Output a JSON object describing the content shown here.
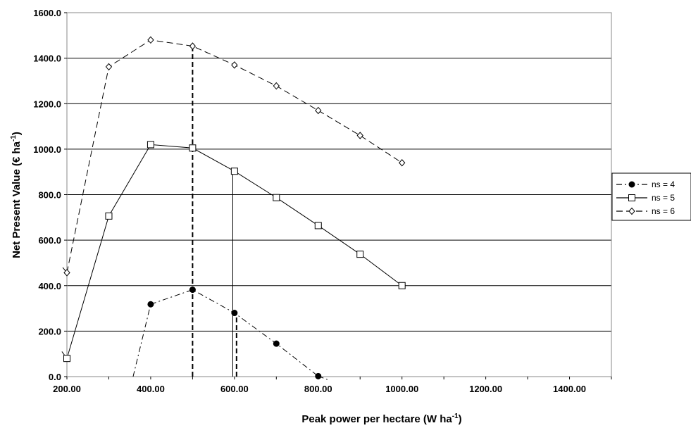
{
  "chart_data": {
    "type": "line",
    "xlabel": "Peak power per hectare (W ha",
    "xlabel_sup": "-1",
    "xlabel_suffix": ")",
    "ylabel": "Net Present Value (€ ha",
    "ylabel_sup": "-1",
    "ylabel_suffix": ")",
    "xlim": [
      200,
      1500
    ],
    "ylim": [
      0,
      1600
    ],
    "x_ticks": [
      200,
      400,
      600,
      800,
      1000,
      1200,
      1400
    ],
    "x_tick_labels": [
      "200.00",
      "400.00",
      "600.00",
      "800.00",
      "1000.00",
      "1200.00",
      "1400.00"
    ],
    "y_ticks": [
      0,
      200,
      400,
      600,
      800,
      1000,
      1200,
      1400,
      1600
    ],
    "y_tick_labels": [
      "0.0",
      "200.0",
      "400.0",
      "600.0",
      "800.0",
      "1000.0",
      "1200.0",
      "1400.0",
      "1600.0"
    ],
    "grid": "horizontal",
    "legend_position": "right",
    "series": [
      {
        "name": "ns = 4",
        "marker": "filled-circle",
        "line_style": "dash-dot",
        "points": [
          [
            400,
            318
          ],
          [
            500,
            382
          ],
          [
            600,
            280
          ],
          [
            700,
            145
          ],
          [
            800,
            2
          ]
        ],
        "line_extensions": [
          [
            [
              358,
              0
            ],
            [
              400,
              318
            ]
          ],
          [
            [
              800,
              2
            ],
            [
              825,
              -15
            ]
          ]
        ]
      },
      {
        "name": "ns = 5",
        "marker": "open-square",
        "line_style": "solid",
        "points": [
          [
            200,
            80
          ],
          [
            300,
            706
          ],
          [
            400,
            1020
          ],
          [
            500,
            1005
          ],
          [
            600,
            903
          ],
          [
            700,
            787
          ],
          [
            800,
            664
          ],
          [
            900,
            538
          ],
          [
            1000,
            400
          ]
        ],
        "line_extensions": [
          [
            [
              188,
              110
            ],
            [
              200,
              80
            ]
          ]
        ]
      },
      {
        "name": "ns = 6",
        "marker": "open-diamond",
        "line_style": "dashed",
        "points": [
          [
            200,
            457
          ],
          [
            300,
            1362
          ],
          [
            400,
            1480
          ],
          [
            500,
            1453
          ],
          [
            600,
            1370
          ],
          [
            700,
            1278
          ],
          [
            800,
            1170
          ],
          [
            900,
            1060
          ],
          [
            1000,
            940
          ]
        ],
        "line_extensions": [
          [
            [
              190,
              480
            ],
            [
              200,
              457
            ]
          ]
        ]
      }
    ],
    "annotations": [
      {
        "kind": "vertical-line",
        "x": 500,
        "y_top": 1453,
        "style": "dashed",
        "weight": "bold"
      },
      {
        "kind": "vertical-line",
        "x": 596,
        "y_top": 903,
        "style": "solid",
        "weight": "thin"
      },
      {
        "kind": "vertical-line",
        "x": 605,
        "y_top": 280,
        "style": "dashed",
        "weight": "bold"
      }
    ]
  }
}
